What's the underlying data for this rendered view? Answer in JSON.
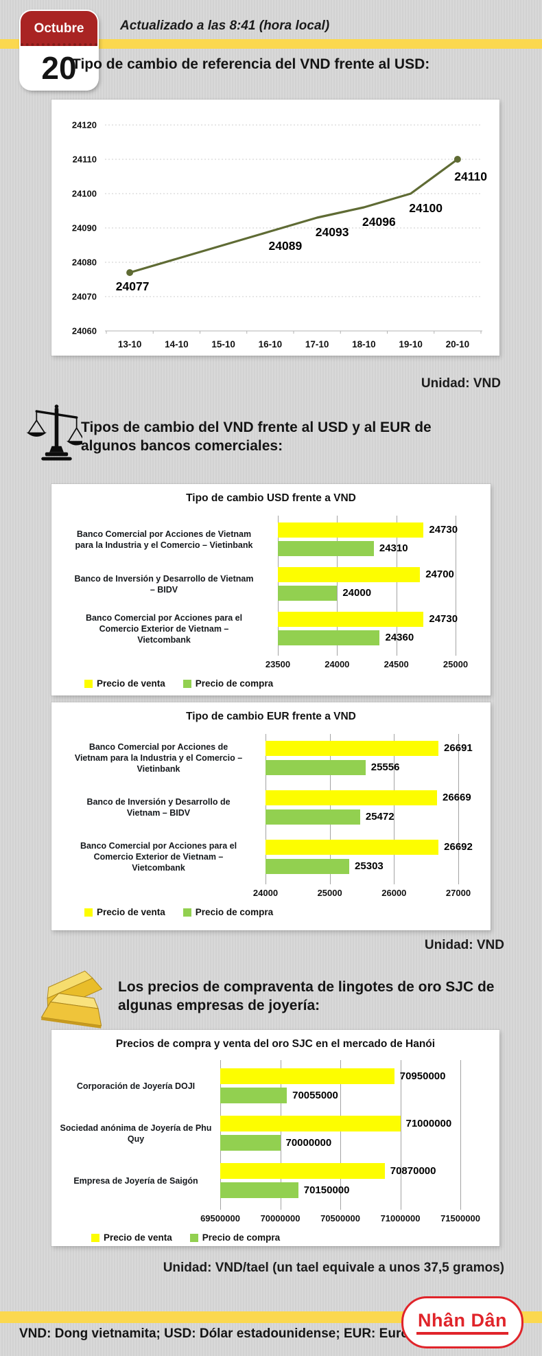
{
  "page": {
    "calendar": {
      "month": "Octubre",
      "day": "20"
    },
    "updated_text": "Actualizado a las 8:41 (hora local)",
    "title_reference": "Tipo de cambio de referencia del VND frente al USD:",
    "unit_line": "Unidad: VND",
    "banks_heading": "Tipos de cambio del VND frente al USD y al EUR de algunos bancos comerciales:",
    "unit_banks": "Unidad: VND",
    "gold_heading": "Los precios de compraventa de lingotes de oro SJC de algunas empresas de joyería:",
    "unit_gold": "Unidad: VND/tael (un tael equivale a unos 37,5 gramos)",
    "footer_abbreviations": "VND: Dong vietnamita; USD: Dólar estadounidense; EUR: Euro",
    "logo_text": "Nhân Dân"
  },
  "colors": {
    "accent_yellow_stripe": "#fbd84f",
    "calendar_red": "#a92423",
    "line_series": "#5f6b34",
    "bar_sell_yellow": "#fdfd00",
    "bar_buy_green": "#92d050",
    "logo_red": "#e0242a",
    "page_bg": "#d7d7d7",
    "panel_bg": "#ffffff"
  },
  "chart_data": [
    {
      "id": "reference-rate-line",
      "type": "line",
      "title": "",
      "x": [
        "13-10",
        "14-10",
        "15-10",
        "16-10",
        "17-10",
        "18-10",
        "19-10",
        "20-10"
      ],
      "values": [
        24077,
        24081,
        24085,
        24089,
        24093,
        24096,
        24100,
        24110
      ],
      "point_labels": [
        "24077",
        "",
        "",
        "24089",
        "24093",
        "24096",
        "24100",
        "24110"
      ],
      "ylim": [
        24060,
        24120
      ],
      "ytick_step": 10,
      "grid": true,
      "legend": "none",
      "line_color": "#5f6b34"
    },
    {
      "id": "usd-vnd-banks",
      "type": "bar",
      "title": "Tipo de cambio USD frente a VND",
      "orientation": "horizontal",
      "categories": [
        "Banco Comercial por Acciones de Vietnam para la Industria y el Comercio – Vietinbank",
        "Banco de Inversión y Desarrollo de Vietnam – BIDV",
        "Banco Comercial por Acciones para el Comercio Exterior de Vietnam – Vietcombank"
      ],
      "series": [
        {
          "name": "Precio de venta",
          "color": "#fdfd00",
          "values": [
            24730,
            24700,
            24730
          ]
        },
        {
          "name": "Precio de compra",
          "color": "#92d050",
          "values": [
            24310,
            24000,
            24360
          ]
        }
      ],
      "xlim": [
        23500,
        25000
      ],
      "xticks": [
        23500,
        24000,
        24500,
        25000
      ],
      "legend_position": "bottom-left"
    },
    {
      "id": "eur-vnd-banks",
      "type": "bar",
      "title": "Tipo de cambio EUR frente a VND",
      "orientation": "horizontal",
      "categories": [
        "Banco Comercial por Acciones de Vietnam para la Industria y el Comercio – Vietinbank",
        "Banco de Inversión y Desarrollo de Vietnam – BIDV",
        "Banco Comercial por Acciones para el Comercio Exterior de Vietnam – Vietcombank"
      ],
      "series": [
        {
          "name": "Precio de venta",
          "color": "#fdfd00",
          "values": [
            26691,
            26669,
            26692
          ]
        },
        {
          "name": "Precio de compra",
          "color": "#92d050",
          "values": [
            25556,
            25472,
            25303
          ]
        }
      ],
      "xlim": [
        24000,
        27000
      ],
      "xticks": [
        24000,
        25000,
        26000,
        27000
      ],
      "legend_position": "bottom-left"
    },
    {
      "id": "gold-sjc-hanoi",
      "type": "bar",
      "title": "Precios de compra y venta del oro SJC en el mercado de Hanói",
      "orientation": "horizontal",
      "categories": [
        "Corporación de Joyería DOJI",
        "Sociedad anónima de Joyería de Phu Quy",
        "Empresa de Joyería de Saigón"
      ],
      "series": [
        {
          "name": "Precio de venta",
          "color": "#fdfd00",
          "values": [
            70950000,
            71000000,
            70870000
          ]
        },
        {
          "name": "Precio de compra",
          "color": "#92d050",
          "values": [
            70055000,
            70000000,
            70150000
          ]
        }
      ],
      "xlim": [
        69500000,
        71500000
      ],
      "xticks": [
        69500000,
        70000000,
        70500000,
        71000000,
        71500000
      ],
      "legend_position": "bottom-left"
    }
  ]
}
